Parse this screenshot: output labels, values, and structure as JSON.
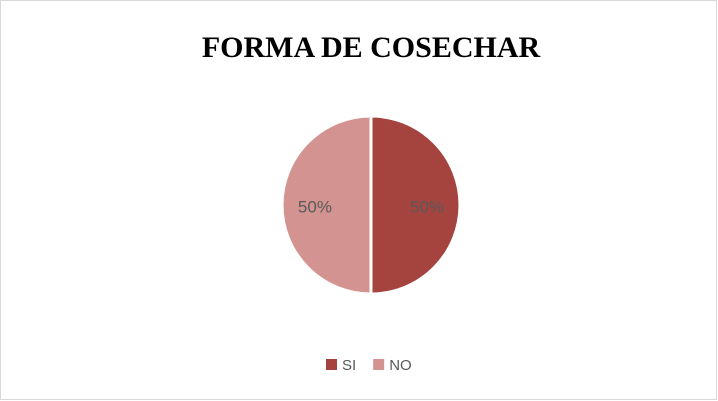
{
  "chart_data": {
    "type": "pie",
    "title": "FORMA DE COSECHAR",
    "categories": [
      "SI",
      "NO"
    ],
    "values": [
      50,
      50
    ],
    "value_labels": [
      "50%",
      "50%"
    ],
    "colors": [
      "#a5443f",
      "#d39391"
    ],
    "legend": "bottom"
  }
}
